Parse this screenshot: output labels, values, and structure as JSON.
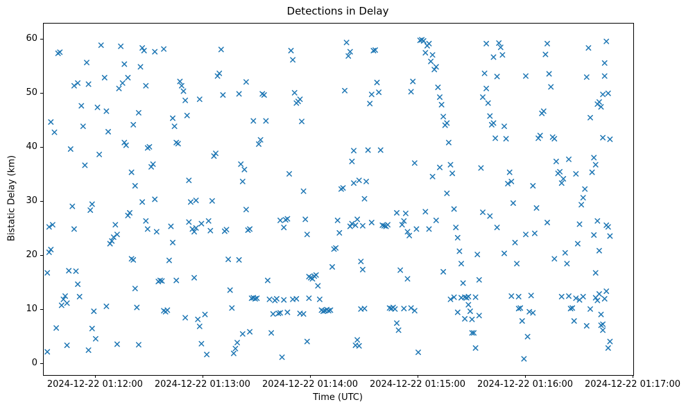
{
  "chart_data": {
    "type": "scatter",
    "title": "Detections in Delay",
    "xlabel": "Time (UTC)",
    "ylabel": "Bistatic Delay (km)",
    "marker": "x",
    "marker_color": "#1f77b4",
    "marker_half_size": 3.2,
    "grid": false,
    "legend": "none",
    "x_tick_labels": [
      "2024-12-22 01:12:00",
      "2024-12-22 01:13:00",
      "2024-12-22 01:14:00",
      "2024-12-22 01:15:00",
      "2024-12-22 01:16:00",
      "2024-12-22 01:17:00"
    ],
    "x_ticks_seconds": [
      0,
      60,
      120,
      180,
      240,
      300
    ],
    "x_range_seconds": [
      -29,
      300
    ],
    "y_ticks": [
      0,
      10,
      20,
      30,
      40,
      50,
      60
    ],
    "y_range": [
      -2,
      63
    ],
    "points": [
      [
        -27,
        2.3
      ],
      [
        -27,
        16.9
      ],
      [
        -26,
        20.7
      ],
      [
        -25,
        21.2
      ],
      [
        -26,
        25.4
      ],
      [
        -24,
        25.8
      ],
      [
        -25,
        44.8
      ],
      [
        -23,
        42.9
      ],
      [
        -21,
        57.5
      ],
      [
        -20,
        57.7
      ],
      [
        -22,
        6.7
      ],
      [
        -19,
        10.9
      ],
      [
        -18,
        12.0
      ],
      [
        -17,
        12.6
      ],
      [
        -16,
        11.3
      ],
      [
        -15,
        17.3
      ],
      [
        -14,
        39.8
      ],
      [
        -13,
        29.2
      ],
      [
        -12,
        25.0
      ],
      [
        -11,
        17.2
      ],
      [
        -10,
        14.8
      ],
      [
        -9,
        12.5
      ],
      [
        -12,
        51.5
      ],
      [
        -10,
        52.0
      ],
      [
        -8,
        47.8
      ],
      [
        -7,
        44.0
      ],
      [
        -5,
        55.8
      ],
      [
        -4,
        51.8
      ],
      [
        -3,
        28.5
      ],
      [
        -2,
        29.6
      ],
      [
        -1,
        9.8
      ],
      [
        -6,
        36.8
      ],
      [
        -16,
        3.5
      ],
      [
        -4,
        2.6
      ],
      [
        -2,
        6.6
      ],
      [
        0,
        4.7
      ],
      [
        1,
        47.5
      ],
      [
        2,
        38.8
      ],
      [
        3,
        59.0
      ],
      [
        5,
        53.0
      ],
      [
        6,
        46.8
      ],
      [
        7,
        43.0
      ],
      [
        8,
        22.3
      ],
      [
        9,
        22.8
      ],
      [
        10,
        23.5
      ],
      [
        11,
        25.8
      ],
      [
        12,
        24.0
      ],
      [
        13,
        51.0
      ],
      [
        14,
        58.8
      ],
      [
        15,
        52.0
      ],
      [
        16,
        41.0
      ],
      [
        17,
        40.5
      ],
      [
        18,
        27.5
      ],
      [
        19,
        28.0
      ],
      [
        20,
        19.5
      ],
      [
        21,
        19.3
      ],
      [
        22,
        14.0
      ],
      [
        23,
        10.5
      ],
      [
        24,
        3.6
      ],
      [
        25,
        55.0
      ],
      [
        26,
        58.5
      ],
      [
        27,
        58.0
      ],
      [
        28,
        51.5
      ],
      [
        29,
        40.0
      ],
      [
        30,
        40.2
      ],
      [
        16,
        55.5
      ],
      [
        18,
        53.0
      ],
      [
        12,
        3.7
      ],
      [
        6,
        10.7
      ],
      [
        20,
        35.5
      ],
      [
        22,
        33.0
      ],
      [
        26,
        30.0
      ],
      [
        28,
        26.5
      ],
      [
        29,
        25.0
      ],
      [
        24,
        46.5
      ],
      [
        21,
        44.3
      ],
      [
        31,
        36.5
      ],
      [
        32,
        37.0
      ],
      [
        33,
        30.5
      ],
      [
        34,
        24.5
      ],
      [
        35,
        15.3
      ],
      [
        36,
        15.5
      ],
      [
        37,
        15.4
      ],
      [
        38,
        9.9
      ],
      [
        39,
        9.7
      ],
      [
        40,
        10.0
      ],
      [
        41,
        19.2
      ],
      [
        42,
        25.5
      ],
      [
        43,
        45.5
      ],
      [
        44,
        44.0
      ],
      [
        45,
        41.0
      ],
      [
        46,
        40.8
      ],
      [
        47,
        52.3
      ],
      [
        48,
        51.5
      ],
      [
        49,
        50.5
      ],
      [
        50,
        48.8
      ],
      [
        51,
        46.0
      ],
      [
        52,
        34.0
      ],
      [
        53,
        30.0
      ],
      [
        54,
        25.0
      ],
      [
        55,
        24.5
      ],
      [
        56,
        25.2
      ],
      [
        57,
        8.3
      ],
      [
        58,
        7.0
      ],
      [
        59,
        3.8
      ],
      [
        45,
        15.5
      ],
      [
        50,
        8.6
      ],
      [
        55,
        16.0
      ],
      [
        33,
        57.8
      ],
      [
        38,
        58.3
      ],
      [
        43,
        22.5
      ],
      [
        58,
        49.0
      ],
      [
        59,
        26.0
      ],
      [
        52,
        26.3
      ],
      [
        56,
        30.3
      ],
      [
        61,
        9.2
      ],
      [
        62,
        1.8
      ],
      [
        63,
        26.5
      ],
      [
        64,
        24.7
      ],
      [
        65,
        30.2
      ],
      [
        66,
        38.5
      ],
      [
        67,
        39.0
      ],
      [
        68,
        53.3
      ],
      [
        69,
        53.8
      ],
      [
        70,
        58.2
      ],
      [
        71,
        49.8
      ],
      [
        72,
        24.6
      ],
      [
        73,
        24.9
      ],
      [
        74,
        19.4
      ],
      [
        75,
        13.7
      ],
      [
        76,
        10.4
      ],
      [
        77,
        2.0
      ],
      [
        78,
        2.9
      ],
      [
        79,
        4.0
      ],
      [
        80,
        19.3
      ],
      [
        81,
        37.0
      ],
      [
        82,
        33.8
      ],
      [
        83,
        36.0
      ],
      [
        84,
        28.6
      ],
      [
        85,
        24.8
      ],
      [
        86,
        25.0
      ],
      [
        87,
        12.2
      ],
      [
        88,
        12.3
      ],
      [
        89,
        12.1
      ],
      [
        90,
        12.2
      ],
      [
        84,
        52.2
      ],
      [
        88,
        45.0
      ],
      [
        82,
        5.6
      ],
      [
        86,
        6.0
      ],
      [
        80,
        50.0
      ],
      [
        91,
        40.7
      ],
      [
        92,
        41.5
      ],
      [
        93,
        50.0
      ],
      [
        94,
        49.8
      ],
      [
        95,
        45.0
      ],
      [
        96,
        15.5
      ],
      [
        97,
        12.0
      ],
      [
        98,
        5.8
      ],
      [
        99,
        9.3
      ],
      [
        100,
        11.8
      ],
      [
        101,
        12.1
      ],
      [
        102,
        9.4
      ],
      [
        103,
        9.5
      ],
      [
        104,
        1.3
      ],
      [
        105,
        25.3
      ],
      [
        106,
        26.7
      ],
      [
        107,
        26.9
      ],
      [
        108,
        35.2
      ],
      [
        109,
        58.0
      ],
      [
        110,
        56.3
      ],
      [
        111,
        50.2
      ],
      [
        112,
        48.3
      ],
      [
        113,
        48.6
      ],
      [
        114,
        49.0
      ],
      [
        115,
        44.9
      ],
      [
        116,
        32.0
      ],
      [
        117,
        26.8
      ],
      [
        118,
        24.0
      ],
      [
        119,
        16.2
      ],
      [
        120,
        16.0
      ],
      [
        110,
        12.0
      ],
      [
        112,
        12.1
      ],
      [
        114,
        9.4
      ],
      [
        116,
        9.3
      ],
      [
        118,
        4.2
      ],
      [
        105,
        11.9
      ],
      [
        107,
        9.6
      ],
      [
        119,
        12.2
      ],
      [
        103,
        26.6
      ],
      [
        121,
        15.8
      ],
      [
        122,
        16.3
      ],
      [
        123,
        16.5
      ],
      [
        124,
        14.5
      ],
      [
        125,
        12.0
      ],
      [
        126,
        10.0
      ],
      [
        127,
        9.8
      ],
      [
        128,
        9.9
      ],
      [
        129,
        10.1
      ],
      [
        130,
        9.9
      ],
      [
        131,
        10.0
      ],
      [
        132,
        18.0
      ],
      [
        133,
        21.3
      ],
      [
        134,
        21.5
      ],
      [
        135,
        26.6
      ],
      [
        136,
        24.3
      ],
      [
        137,
        32.4
      ],
      [
        138,
        32.6
      ],
      [
        139,
        50.6
      ],
      [
        140,
        59.5
      ],
      [
        141,
        57.0
      ],
      [
        142,
        57.8
      ],
      [
        143,
        37.5
      ],
      [
        144,
        39.5
      ],
      [
        145,
        3.5
      ],
      [
        146,
        4.5
      ],
      [
        147,
        3.4
      ],
      [
        148,
        19.0
      ],
      [
        149,
        17.5
      ],
      [
        150,
        30.6
      ],
      [
        143,
        26.0
      ],
      [
        146,
        26.8
      ],
      [
        148,
        10.2
      ],
      [
        150,
        10.3
      ],
      [
        144,
        33.5
      ],
      [
        147,
        34.0
      ],
      [
        149,
        25.6
      ],
      [
        142,
        25.5
      ],
      [
        145,
        25.7
      ],
      [
        151,
        33.8
      ],
      [
        152,
        39.6
      ],
      [
        153,
        48.2
      ],
      [
        154,
        49.9
      ],
      [
        155,
        58.0
      ],
      [
        156,
        58.1
      ],
      [
        157,
        52.1
      ],
      [
        158,
        50.3
      ],
      [
        159,
        39.6
      ],
      [
        160,
        25.7
      ],
      [
        161,
        25.6
      ],
      [
        162,
        25.5
      ],
      [
        163,
        25.8
      ],
      [
        164,
        10.4
      ],
      [
        165,
        10.3
      ],
      [
        166,
        10.5
      ],
      [
        167,
        10.2
      ],
      [
        168,
        7.6
      ],
      [
        169,
        6.3
      ],
      [
        170,
        17.4
      ],
      [
        171,
        25.8
      ],
      [
        172,
        26.5
      ],
      [
        173,
        27.9
      ],
      [
        174,
        24.5
      ],
      [
        175,
        23.8
      ],
      [
        176,
        50.4
      ],
      [
        177,
        52.3
      ],
      [
        178,
        37.2
      ],
      [
        179,
        25.0
      ],
      [
        180,
        2.2
      ],
      [
        176,
        10.4
      ],
      [
        172,
        10.3
      ],
      [
        154,
        26.2
      ],
      [
        168,
        28.0
      ],
      [
        174,
        15.8
      ],
      [
        178,
        9.9
      ],
      [
        181,
        59.9
      ],
      [
        182,
        60.0
      ],
      [
        183,
        59.8
      ],
      [
        184,
        57.6
      ],
      [
        185,
        58.9
      ],
      [
        186,
        59.3
      ],
      [
        187,
        56.0
      ],
      [
        188,
        57.2
      ],
      [
        189,
        54.5
      ],
      [
        190,
        55.0
      ],
      [
        191,
        51.2
      ],
      [
        192,
        49.4
      ],
      [
        193,
        48.0
      ],
      [
        194,
        45.8
      ],
      [
        195,
        44.2
      ],
      [
        196,
        44.6
      ],
      [
        197,
        41.0
      ],
      [
        198,
        36.9
      ],
      [
        199,
        35.3
      ],
      [
        200,
        28.7
      ],
      [
        201,
        25.3
      ],
      [
        202,
        23.4
      ],
      [
        203,
        20.9
      ],
      [
        204,
        18.6
      ],
      [
        205,
        15.0
      ],
      [
        206,
        12.4
      ],
      [
        207,
        12.3
      ],
      [
        208,
        11.0
      ],
      [
        209,
        9.8
      ],
      [
        210,
        8.3
      ],
      [
        211,
        5.8
      ],
      [
        212,
        3.0
      ],
      [
        213,
        20.3
      ],
      [
        214,
        15.6
      ],
      [
        215,
        36.3
      ],
      [
        216,
        49.4
      ],
      [
        217,
        53.8
      ],
      [
        218,
        51.0
      ],
      [
        219,
        48.3
      ],
      [
        220,
        45.9
      ],
      [
        221,
        44.3
      ],
      [
        222,
        44.6
      ],
      [
        223,
        41.8
      ],
      [
        224,
        53.2
      ],
      [
        225,
        59.4
      ],
      [
        226,
        58.6
      ],
      [
        227,
        57.2
      ],
      [
        228,
        44.0
      ],
      [
        229,
        41.7
      ],
      [
        230,
        33.4
      ],
      [
        231,
        35.5
      ],
      [
        232,
        33.8
      ],
      [
        233,
        29.8
      ],
      [
        234,
        22.5
      ],
      [
        235,
        18.6
      ],
      [
        236,
        12.5
      ],
      [
        237,
        10.4
      ],
      [
        238,
        8.0
      ],
      [
        239,
        1.0
      ],
      [
        240,
        24.0
      ],
      [
        184,
        28.2
      ],
      [
        188,
        34.7
      ],
      [
        192,
        36.4
      ],
      [
        196,
        31.6
      ],
      [
        200,
        12.4
      ],
      [
        204,
        12.3
      ],
      [
        208,
        12.5
      ],
      [
        212,
        12.4
      ],
      [
        186,
        25.0
      ],
      [
        190,
        26.6
      ],
      [
        194,
        17.1
      ],
      [
        198,
        12.0
      ],
      [
        202,
        9.6
      ],
      [
        206,
        8.4
      ],
      [
        210,
        5.8
      ],
      [
        214,
        9.0
      ],
      [
        216,
        28.1
      ],
      [
        220,
        27.4
      ],
      [
        224,
        25.3
      ],
      [
        228,
        20.5
      ],
      [
        232,
        12.6
      ],
      [
        236,
        10.3
      ],
      [
        218,
        59.3
      ],
      [
        222,
        56.8
      ],
      [
        241,
        5.1
      ],
      [
        242,
        9.7
      ],
      [
        243,
        12.7
      ],
      [
        244,
        9.5
      ],
      [
        245,
        24.2
      ],
      [
        246,
        28.9
      ],
      [
        247,
        41.8
      ],
      [
        248,
        42.3
      ],
      [
        249,
        46.4
      ],
      [
        250,
        46.8
      ],
      [
        251,
        57.3
      ],
      [
        252,
        59.3
      ],
      [
        253,
        53.7
      ],
      [
        254,
        51.3
      ],
      [
        255,
        42.0
      ],
      [
        256,
        41.7
      ],
      [
        257,
        37.5
      ],
      [
        258,
        35.3
      ],
      [
        259,
        35.6
      ],
      [
        260,
        33.5
      ],
      [
        261,
        34.3
      ],
      [
        262,
        20.6
      ],
      [
        263,
        18.6
      ],
      [
        264,
        12.6
      ],
      [
        265,
        10.3
      ],
      [
        266,
        10.4
      ],
      [
        267,
        8.0
      ],
      [
        268,
        12.2
      ],
      [
        269,
        22.3
      ],
      [
        270,
        25.9
      ],
      [
        271,
        29.5
      ],
      [
        272,
        30.8
      ],
      [
        273,
        32.4
      ],
      [
        274,
        53.1
      ],
      [
        275,
        58.5
      ],
      [
        276,
        45.6
      ],
      [
        277,
        35.5
      ],
      [
        278,
        23.9
      ],
      [
        279,
        12.3
      ],
      [
        280,
        11.8
      ],
      [
        281,
        13.0
      ],
      [
        282,
        7.2
      ],
      [
        283,
        7.4
      ],
      [
        284,
        12.1
      ],
      [
        285,
        13.5
      ],
      [
        286,
        25.4
      ],
      [
        287,
        23.7
      ],
      [
        283,
        41.9
      ],
      [
        284,
        53.3
      ],
      [
        285,
        25.7
      ],
      [
        282,
        9.2
      ],
      [
        286,
        3.0
      ],
      [
        280,
        48.1
      ],
      [
        281,
        48.5
      ],
      [
        282,
        47.6
      ],
      [
        283,
        49.9
      ],
      [
        284,
        55.7
      ],
      [
        285,
        59.7
      ],
      [
        286,
        50.1
      ],
      [
        287,
        41.6
      ],
      [
        278,
        38.2
      ],
      [
        279,
        36.9
      ],
      [
        280,
        26.5
      ],
      [
        281,
        21.0
      ],
      [
        279,
        16.9
      ],
      [
        283,
        6.3
      ],
      [
        287,
        4.2
      ],
      [
        240,
        53.3
      ],
      [
        244,
        33.0
      ],
      [
        252,
        26.2
      ],
      [
        256,
        19.5
      ],
      [
        260,
        12.5
      ],
      [
        264,
        37.9
      ],
      [
        268,
        35.2
      ],
      [
        272,
        12.5
      ],
      [
        276,
        10.2
      ],
      [
        274,
        7.1
      ],
      [
        270,
        11.9
      ]
    ]
  }
}
